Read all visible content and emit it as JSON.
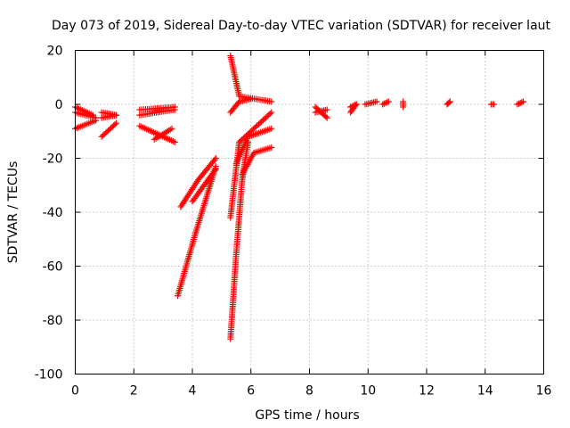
{
  "chart_data": {
    "type": "scatter",
    "title": "Day 073 of 2019, Sidereal Day-to-day VTEC variation (SDTVAR) for receiver laut",
    "xlabel": "GPS time / hours",
    "ylabel": "SDTVAR / TECUs",
    "xlim": [
      0,
      16
    ],
    "ylim": [
      -100,
      20
    ],
    "xticks": [
      "0",
      "2",
      "4",
      "6",
      "8",
      "10",
      "12",
      "14",
      "16"
    ],
    "yticks": [
      "-100",
      "-80",
      "-60",
      "-40",
      "-20",
      "0",
      "20"
    ],
    "grid": true,
    "marker": "+",
    "color": "#ff0000",
    "segments": [
      {
        "x": [
          0.0,
          0.7
        ],
        "y": [
          -3,
          -5
        ]
      },
      {
        "x": [
          0.0,
          0.7
        ],
        "y": [
          -9,
          -6
        ]
      },
      {
        "x": [
          0.0,
          0.6
        ],
        "y": [
          -1,
          -4
        ]
      },
      {
        "x": [
          0.9,
          1.4
        ],
        "y": [
          -5,
          -4
        ]
      },
      {
        "x": [
          0.9,
          1.4
        ],
        "y": [
          -12,
          -7
        ]
      },
      {
        "x": [
          0.9,
          1.4
        ],
        "y": [
          -3,
          -4
        ]
      },
      {
        "x": [
          2.2,
          3.4
        ],
        "y": [
          -2,
          -1
        ]
      },
      {
        "x": [
          2.2,
          3.4
        ],
        "y": [
          -8,
          -14
        ]
      },
      {
        "x": [
          2.2,
          3.4
        ],
        "y": [
          -4,
          -2
        ]
      },
      {
        "x": [
          2.7,
          3.3
        ],
        "y": [
          -13,
          -9
        ]
      },
      {
        "x": [
          3.5,
          4.1,
          4.8
        ],
        "y": [
          -71,
          -48,
          -23
        ]
      },
      {
        "x": [
          3.6,
          4.2,
          4.8
        ],
        "y": [
          -38,
          -28,
          -20
        ]
      },
      {
        "x": [
          4.0,
          4.4,
          4.8
        ],
        "y": [
          -36,
          -30,
          -24
        ]
      },
      {
        "x": [
          5.3,
          5.6,
          6.7
        ],
        "y": [
          18,
          3,
          1
        ]
      },
      {
        "x": [
          5.3,
          5.5,
          5.7,
          5.9
        ],
        "y": [
          -87,
          -55,
          -28,
          -14
        ]
      },
      {
        "x": [
          5.3,
          5.6,
          6.7
        ],
        "y": [
          -42,
          -14,
          -3
        ]
      },
      {
        "x": [
          5.5,
          5.9,
          6.7
        ],
        "y": [
          -22,
          -12,
          -9
        ]
      },
      {
        "x": [
          5.7,
          6.1,
          6.7
        ],
        "y": [
          -26,
          -18,
          -16
        ]
      },
      {
        "x": [
          5.3,
          5.6,
          6.0
        ],
        "y": [
          -3,
          1,
          2
        ]
      },
      {
        "x": [
          8.2,
          8.6
        ],
        "y": [
          -1,
          -5
        ]
      },
      {
        "x": [
          8.2,
          8.6
        ],
        "y": [
          -3,
          -2
        ]
      },
      {
        "x": [
          9.4,
          9.6
        ],
        "y": [
          -3,
          0
        ]
      },
      {
        "x": [
          9.4,
          9.6
        ],
        "y": [
          -1,
          0
        ]
      },
      {
        "x": [
          9.9,
          10.3
        ],
        "y": [
          0,
          1
        ]
      },
      {
        "x": [
          10.5,
          10.7
        ],
        "y": [
          0,
          1
        ]
      },
      {
        "x": [
          11.2,
          11.2
        ],
        "y": [
          -1,
          1
        ]
      },
      {
        "x": [
          12.7,
          12.8
        ],
        "y": [
          0,
          1
        ]
      },
      {
        "x": [
          14.2,
          14.3
        ],
        "y": [
          0,
          0
        ]
      },
      {
        "x": [
          15.1,
          15.3
        ],
        "y": [
          0,
          1
        ]
      }
    ]
  }
}
